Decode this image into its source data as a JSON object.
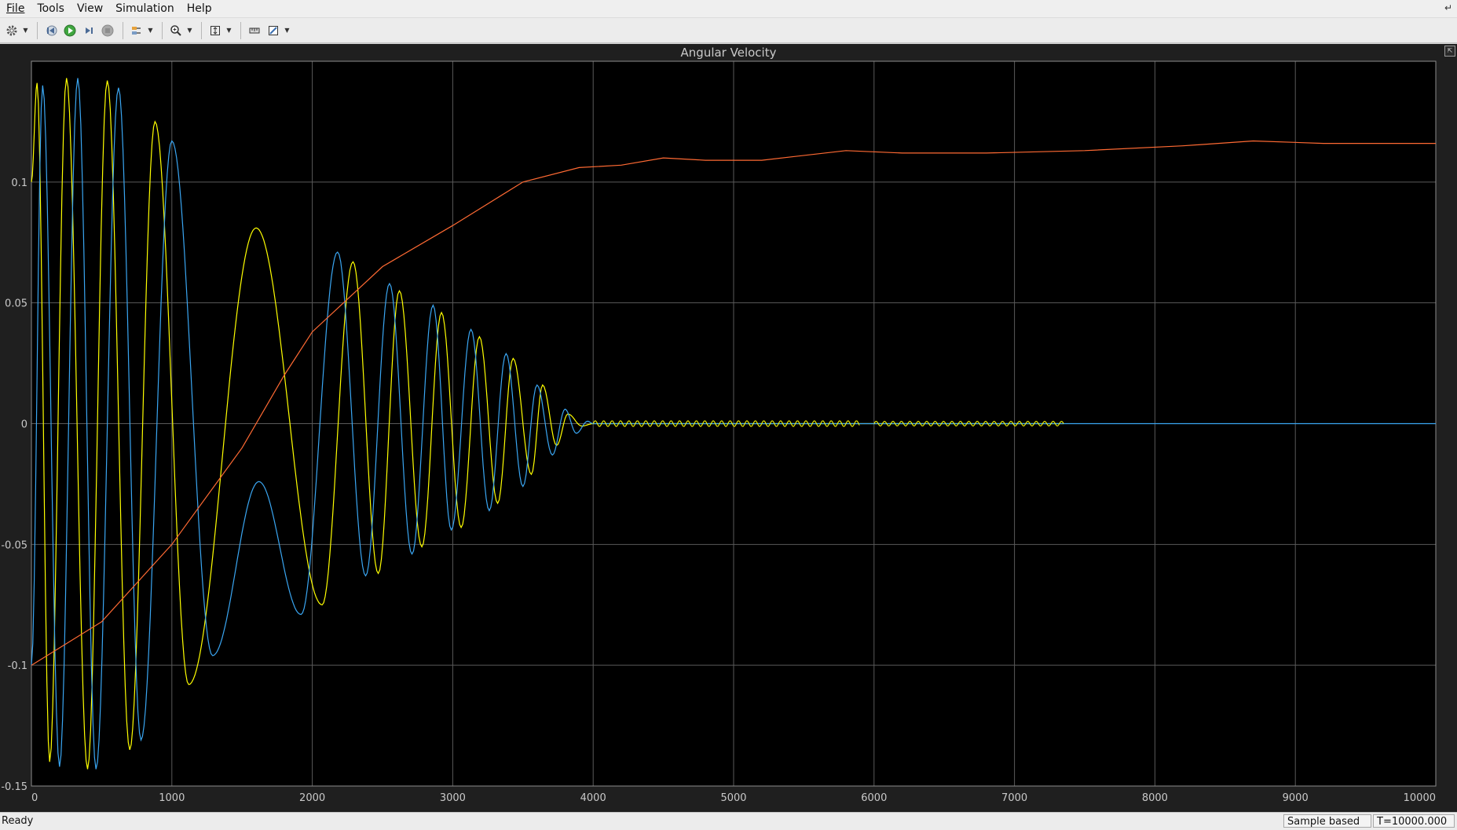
{
  "menubar": {
    "items": [
      "File",
      "Tools",
      "View",
      "Simulation",
      "Help"
    ]
  },
  "toolbar": {
    "buttons": [
      "gear-icon",
      "step-back-icon",
      "run-icon",
      "step-forward-icon",
      "stop-icon",
      "highlight-icon",
      "zoom-icon",
      "autoscale-icon",
      "cursor-measure-icon"
    ]
  },
  "scope": {
    "title": "Angular Velocity"
  },
  "status": {
    "ready": "Ready",
    "mode": "Sample based",
    "time": "T=10000.000"
  },
  "colors": {
    "background": "#000000",
    "grid": "#5a5a5a",
    "axes_text": "#c9c9c9",
    "series": [
      "#ffff00",
      "#3aa6f2",
      "#ff6a33"
    ]
  },
  "chart_data": {
    "type": "line",
    "title": "Angular Velocity",
    "xlabel": "",
    "ylabel": "",
    "xlim": [
      0,
      10000
    ],
    "ylim": [
      -0.15,
      0.15
    ],
    "xticks": [
      0,
      1000,
      2000,
      3000,
      4000,
      5000,
      6000,
      7000,
      8000,
      9000,
      10000
    ],
    "yticks": [
      -0.15,
      -0.1,
      -0.05,
      0,
      0.05,
      0.1
    ],
    "ytick_labels": [
      "-0.15",
      "-0.1",
      "-0.05",
      "0",
      "0.05",
      "0.1"
    ],
    "grid": true,
    "series": [
      {
        "color": "#ffff00",
        "peaks": [
          [
            0,
            0.1
          ],
          [
            40,
            0.141
          ],
          [
            130,
            -0.14
          ],
          [
            250,
            0.143
          ],
          [
            400,
            -0.143
          ],
          [
            540,
            0.142
          ],
          [
            700,
            -0.135
          ],
          [
            880,
            0.125
          ],
          [
            1120,
            -0.108
          ],
          [
            1600,
            0.081
          ],
          [
            2070,
            -0.075
          ],
          [
            2290,
            0.067
          ],
          [
            2470,
            -0.062
          ],
          [
            2620,
            0.055
          ],
          [
            2780,
            -0.051
          ],
          [
            2920,
            0.046
          ],
          [
            3060,
            -0.043
          ],
          [
            3190,
            0.036
          ],
          [
            3320,
            -0.033
          ],
          [
            3430,
            0.027
          ],
          [
            3560,
            -0.021
          ],
          [
            3640,
            0.016
          ],
          [
            3740,
            -0.009
          ],
          [
            3820,
            0.004
          ],
          [
            3920,
            -0.001
          ],
          [
            4000,
            0.0
          ],
          [
            7350,
            0.0
          ]
        ]
      },
      {
        "color": "#3aa6f2",
        "peaks": [
          [
            0,
            -0.1
          ],
          [
            80,
            0.14
          ],
          [
            200,
            -0.142
          ],
          [
            330,
            0.143
          ],
          [
            460,
            -0.143
          ],
          [
            620,
            0.139
          ],
          [
            780,
            -0.131
          ],
          [
            1000,
            0.117
          ],
          [
            1290,
            -0.096
          ],
          [
            1620,
            -0.024
          ],
          [
            1920,
            -0.079
          ],
          [
            2180,
            0.071
          ],
          [
            2380,
            -0.063
          ],
          [
            2550,
            0.058
          ],
          [
            2710,
            -0.054
          ],
          [
            2860,
            0.049
          ],
          [
            2990,
            -0.044
          ],
          [
            3130,
            0.039
          ],
          [
            3260,
            -0.036
          ],
          [
            3380,
            0.029
          ],
          [
            3500,
            -0.026
          ],
          [
            3600,
            0.016
          ],
          [
            3710,
            -0.013
          ],
          [
            3800,
            0.006
          ],
          [
            3880,
            -0.004
          ],
          [
            3960,
            0.001
          ],
          [
            4000,
            0.0
          ],
          [
            10000,
            0.0
          ]
        ]
      },
      {
        "color": "#ff6a33",
        "points": [
          [
            0,
            -0.1
          ],
          [
            500,
            -0.082
          ],
          [
            1000,
            -0.05
          ],
          [
            1500,
            -0.01
          ],
          [
            1800,
            0.02
          ],
          [
            2000,
            0.038
          ],
          [
            2500,
            0.065
          ],
          [
            3000,
            0.082
          ],
          [
            3500,
            0.1
          ],
          [
            3900,
            0.106
          ],
          [
            4200,
            0.107
          ],
          [
            4500,
            0.11
          ],
          [
            4800,
            0.109
          ],
          [
            5200,
            0.109
          ],
          [
            5800,
            0.113
          ],
          [
            6200,
            0.112
          ],
          [
            6800,
            0.112
          ],
          [
            7500,
            0.113
          ],
          [
            8200,
            0.115
          ],
          [
            8700,
            0.117
          ],
          [
            9200,
            0.116
          ],
          [
            10000,
            0.116
          ]
        ]
      }
    ]
  }
}
